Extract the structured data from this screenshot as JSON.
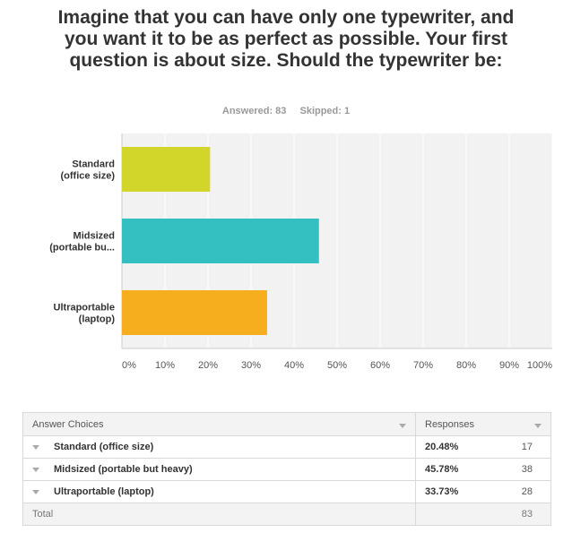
{
  "question": {
    "title": "Imagine that you can have only one typewriter, and you want it to be as perfect as possible. Your first question is about size. Should the typewriter be:",
    "answered": "Answered: 83",
    "skipped": "Skipped: 1"
  },
  "chart_data": {
    "type": "bar",
    "orientation": "horizontal",
    "categories": [
      [
        "Standard",
        "(office size)"
      ],
      [
        "Midsized",
        "(portable bu..."
      ],
      [
        "Ultraportable",
        "(laptop)"
      ]
    ],
    "values": [
      20.48,
      45.78,
      33.73
    ],
    "colors": [
      "#d2d62a",
      "#34bfc0",
      "#f6ae1f"
    ],
    "xlim": [
      0,
      100
    ],
    "xticks": [
      "0%",
      "10%",
      "20%",
      "30%",
      "40%",
      "50%",
      "60%",
      "70%",
      "80%",
      "90%",
      "100%"
    ],
    "grid": true,
    "background": "#f2f2f2"
  },
  "table": {
    "headers": {
      "choices": "Answer Choices",
      "responses": "Responses"
    },
    "rows": [
      {
        "choice": "Standard (office size)",
        "percent": "20.48%",
        "count": "17"
      },
      {
        "choice": "Midsized (portable but heavy)",
        "percent": "45.78%",
        "count": "38"
      },
      {
        "choice": "Ultraportable (laptop)",
        "percent": "33.73%",
        "count": "28"
      }
    ],
    "total": {
      "label": "Total",
      "count": "83"
    }
  }
}
